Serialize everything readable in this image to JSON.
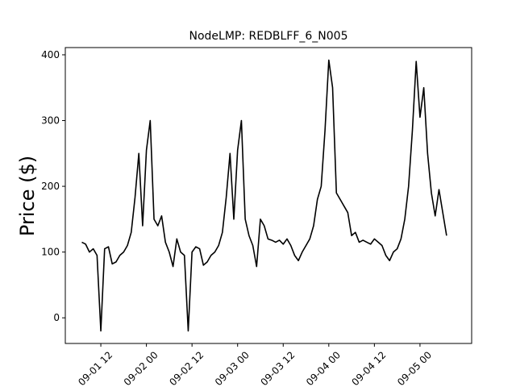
{
  "chart_data": {
    "type": "line",
    "title": "NodeLMP: REDBLFF_6_N005",
    "y_label": "Price ($)",
    "x": [
      7,
      8,
      9,
      10,
      11,
      12,
      13,
      14,
      15,
      16,
      17,
      18,
      19,
      20,
      21,
      22,
      23,
      24,
      25,
      26,
      27,
      28,
      29,
      30,
      31,
      32,
      33,
      34,
      35,
      36,
      37,
      38,
      39,
      40,
      41,
      42,
      43,
      44,
      45,
      46,
      47,
      48,
      49,
      50,
      51,
      52,
      53,
      54,
      55,
      56,
      57,
      58,
      59,
      60,
      61,
      62,
      63,
      64,
      65,
      66,
      67,
      68,
      69,
      70,
      71,
      72,
      73,
      74,
      75,
      76,
      77,
      78,
      79,
      80,
      81,
      82,
      83,
      84,
      85,
      86,
      87,
      88,
      89,
      90,
      91,
      92,
      93,
      94,
      95,
      96,
      97,
      98,
      99,
      100,
      101,
      102,
      103
    ],
    "series": [
      {
        "name": "REDBLFF_6_N005",
        "color": "#000000",
        "values": [
          115,
          112,
          100,
          105,
          95,
          -20,
          105,
          108,
          82,
          85,
          95,
          100,
          110,
          130,
          183,
          250,
          140,
          255,
          300,
          150,
          140,
          155,
          115,
          100,
          78,
          120,
          100,
          95,
          -20,
          100,
          108,
          105,
          80,
          85,
          95,
          100,
          110,
          130,
          183,
          250,
          150,
          255,
          300,
          150,
          125,
          110,
          78,
          150,
          140,
          120,
          118,
          115,
          118,
          112,
          120,
          110,
          95,
          87,
          100,
          110,
          120,
          140,
          180,
          200,
          285,
          392,
          350,
          190,
          180,
          170,
          160,
          125,
          130,
          115,
          118,
          115,
          112,
          120,
          115,
          110,
          95,
          87,
          100,
          105,
          120,
          150,
          200,
          285,
          390,
          305,
          350,
          250,
          190,
          155,
          195,
          160,
          125
        ]
      }
    ],
    "xlim": [
      2.65,
      109.6
    ],
    "ylim": [
      -39,
      411
    ],
    "xticks": [
      {
        "value": 12,
        "label": "09-01 12"
      },
      {
        "value": 24,
        "label": "09-02 00"
      },
      {
        "value": 36,
        "label": "09-02 12"
      },
      {
        "value": 48,
        "label": "09-03 00"
      },
      {
        "value": 60,
        "label": "09-03 12"
      },
      {
        "value": 72,
        "label": "09-04 00"
      },
      {
        "value": 84,
        "label": "09-04 12"
      },
      {
        "value": 96,
        "label": "09-05 00"
      }
    ],
    "yticks": [
      0,
      100,
      200,
      300,
      400
    ]
  }
}
